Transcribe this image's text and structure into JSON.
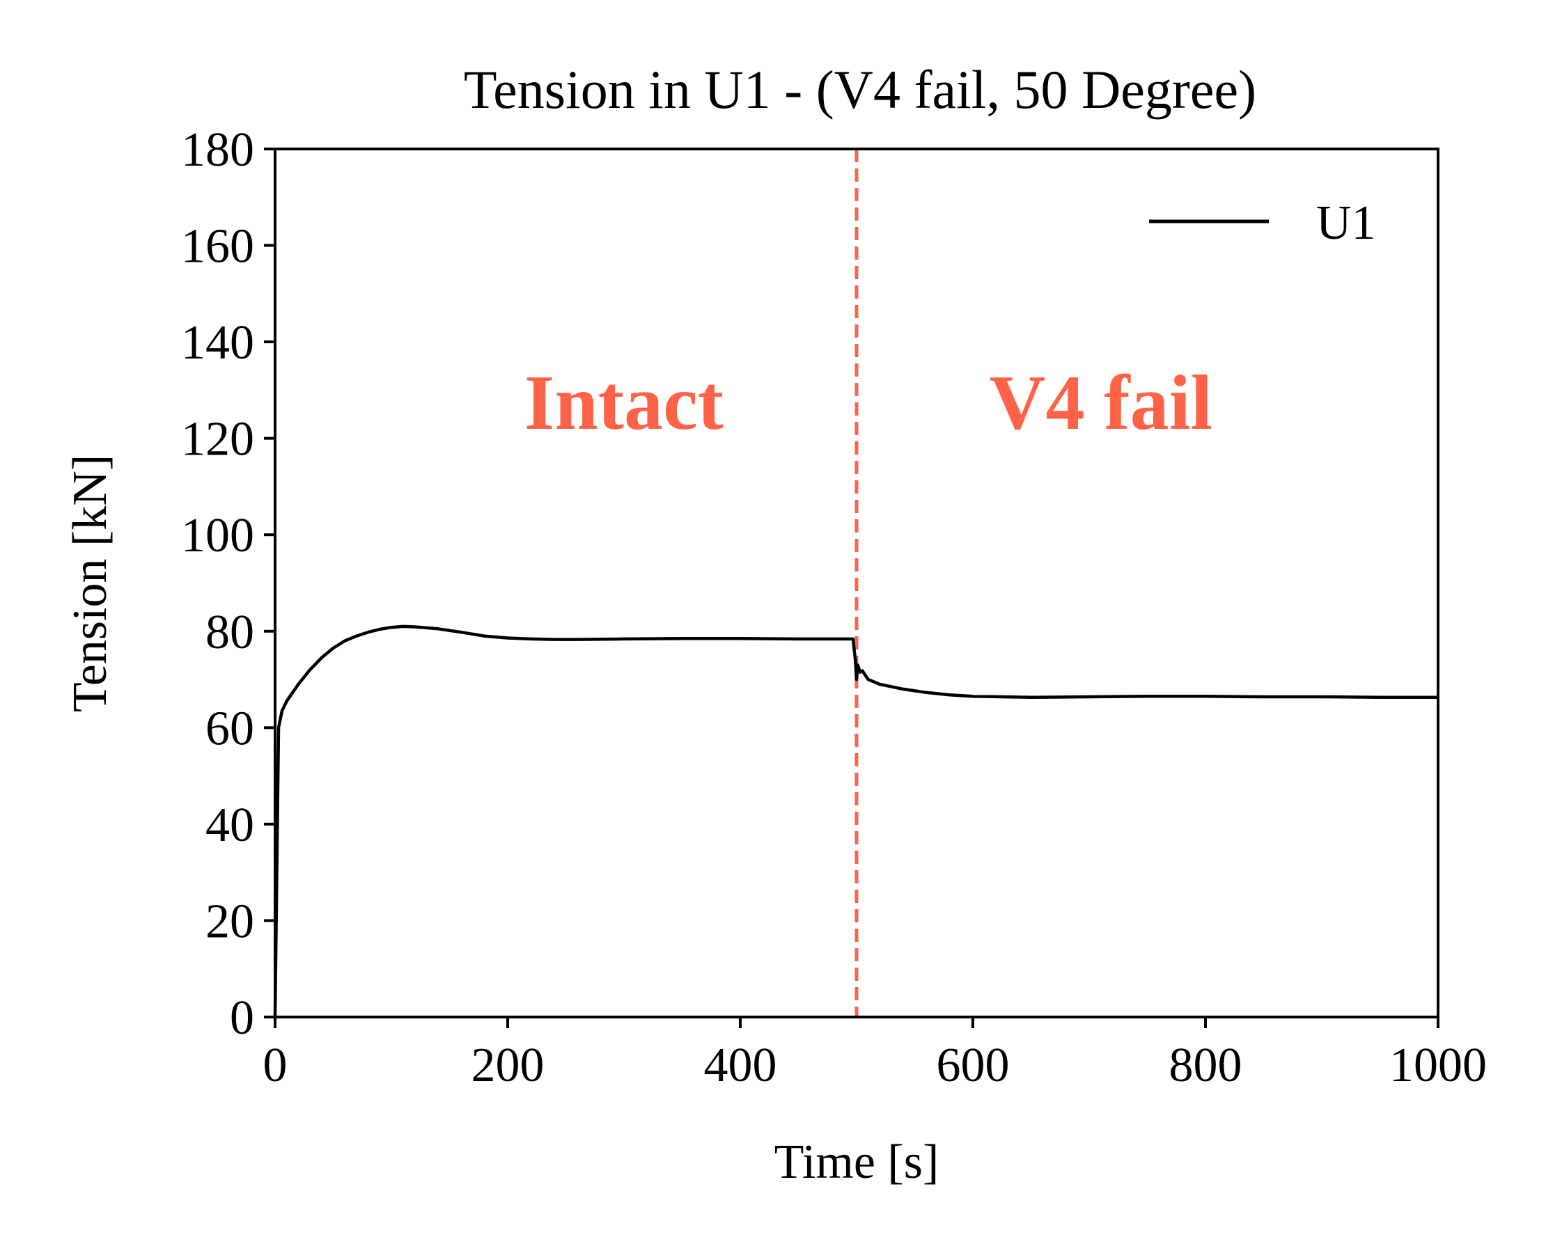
{
  "chart_data": {
    "type": "line",
    "title": "Tension in U1 - (V4 fail, 50 Degree)",
    "xlabel": "Time [s]",
    "ylabel": "Tension [kN]",
    "xlim": [
      0,
      1000
    ],
    "ylim": [
      0,
      180
    ],
    "xticks": [
      0,
      200,
      400,
      600,
      800,
      1000
    ],
    "yticks": [
      0,
      20,
      40,
      60,
      80,
      100,
      120,
      140,
      160,
      180
    ],
    "grid": false,
    "legend": {
      "position": "top-right",
      "entries": [
        "U1"
      ]
    },
    "annotations": [
      {
        "text": "Intact",
        "x": 300,
        "y": 122,
        "color": "#ff6347"
      },
      {
        "text": "V4 fail",
        "x": 710,
        "y": 122,
        "color": "#ff6347"
      }
    ],
    "vlines": [
      {
        "x": 500,
        "color": "#ff6347",
        "style": "dashed"
      }
    ],
    "series": [
      {
        "name": "U1",
        "color": "#000000",
        "points": [
          [
            0,
            0
          ],
          [
            3,
            60
          ],
          [
            6,
            63.5
          ],
          [
            10,
            65.5
          ],
          [
            20,
            69
          ],
          [
            30,
            72
          ],
          [
            40,
            74.5
          ],
          [
            50,
            76.5
          ],
          [
            60,
            78
          ],
          [
            70,
            79
          ],
          [
            80,
            79.8
          ],
          [
            90,
            80.4
          ],
          [
            100,
            80.8
          ],
          [
            110,
            81
          ],
          [
            120,
            80.9
          ],
          [
            140,
            80.5
          ],
          [
            160,
            79.8
          ],
          [
            180,
            79
          ],
          [
            200,
            78.6
          ],
          [
            220,
            78.4
          ],
          [
            240,
            78.3
          ],
          [
            260,
            78.3
          ],
          [
            300,
            78.4
          ],
          [
            350,
            78.5
          ],
          [
            400,
            78.5
          ],
          [
            450,
            78.4
          ],
          [
            497,
            78.4
          ],
          [
            498,
            76
          ],
          [
            499,
            74
          ],
          [
            500,
            70
          ],
          [
            501,
            73
          ],
          [
            503,
            71.5
          ],
          [
            505,
            71.8
          ],
          [
            510,
            70
          ],
          [
            520,
            69
          ],
          [
            540,
            68
          ],
          [
            560,
            67.3
          ],
          [
            580,
            66.8
          ],
          [
            600,
            66.5
          ],
          [
            650,
            66.3
          ],
          [
            700,
            66.4
          ],
          [
            750,
            66.5
          ],
          [
            800,
            66.5
          ],
          [
            850,
            66.4
          ],
          [
            900,
            66.4
          ],
          [
            950,
            66.3
          ],
          [
            1000,
            66.3
          ]
        ]
      }
    ]
  }
}
